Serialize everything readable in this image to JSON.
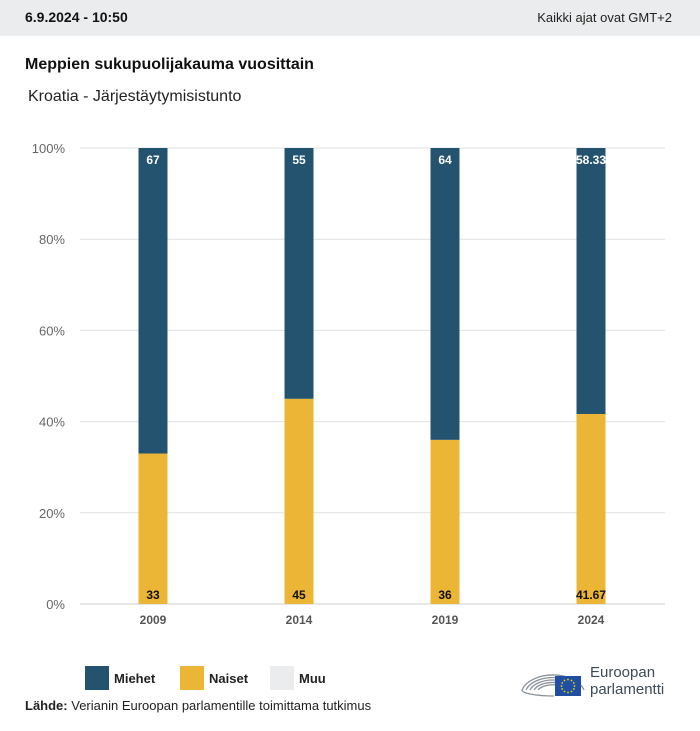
{
  "header": {
    "datetime": "6.9.2024 - 10:50",
    "timezone_note": "Kaikki ajat ovat GMT+2"
  },
  "title": "Meppien sukupuolijakauma vuosittain",
  "subtitle": "Kroatia - Järjestäytymisistunto",
  "colors": {
    "miehet": "#24536f",
    "naiset": "#ebb535",
    "muu": "#ebecee",
    "grid": "#e0e0e0"
  },
  "chart_data": {
    "type": "bar",
    "stacked": true,
    "title": "Meppien sukupuolijakauma vuosittain",
    "subtitle": "Kroatia - Järjestäytymisistunto",
    "categories": [
      "2009",
      "2014",
      "2019",
      "2024"
    ],
    "series": [
      {
        "name": "Naiset",
        "values": [
          33,
          45,
          36,
          41.67
        ],
        "labels": [
          "33",
          "45",
          "36",
          "41.67"
        ]
      },
      {
        "name": "Miehet",
        "values": [
          67,
          55,
          64,
          58.33
        ],
        "labels": [
          "67",
          "55",
          "64",
          "58.33"
        ]
      },
      {
        "name": "Muu",
        "values": [
          0,
          0,
          0,
          0
        ]
      }
    ],
    "yticks": [
      "0%",
      "20%",
      "40%",
      "60%",
      "80%",
      "100%"
    ],
    "ylim": [
      0,
      100
    ],
    "xlabel": "",
    "ylabel": "",
    "grid": true,
    "legend_position": "bottom-left"
  },
  "legend": [
    {
      "label": "Miehet"
    },
    {
      "label": "Naiset"
    },
    {
      "label": "Muu"
    }
  ],
  "source": {
    "label": "Lähde:",
    "text": " Verianin Euroopan parlamentille toimittama tutkimus"
  },
  "logo": {
    "line1": "Euroopan",
    "line2": "parlamentti"
  }
}
